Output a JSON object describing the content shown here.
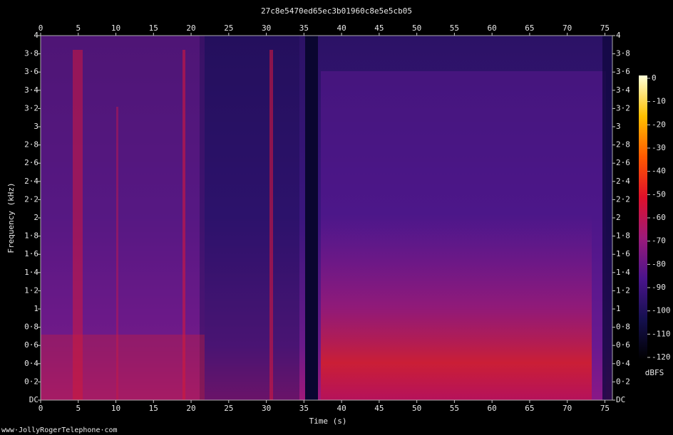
{
  "chart_data": {
    "type": "spectrogram",
    "title": "27c8e5470ed65ec3b01960c8e5e5cb05",
    "x_label": "Time (s)",
    "y_label": "Frequency (kHz)",
    "xlim": [
      0,
      76
    ],
    "xticks": [
      0,
      5,
      10,
      15,
      20,
      25,
      30,
      35,
      40,
      45,
      50,
      55,
      60,
      65,
      70,
      75
    ],
    "ylim": [
      0,
      4
    ],
    "yticks": [
      {
        "value": 0,
        "label": "DC"
      },
      {
        "value": 0.2,
        "label": "0·2"
      },
      {
        "value": 0.4,
        "label": "0·4"
      },
      {
        "value": 0.6,
        "label": "0·6"
      },
      {
        "value": 0.8,
        "label": "0·8"
      },
      {
        "value": 1,
        "label": "1"
      },
      {
        "value": 1.2,
        "label": "1·2"
      },
      {
        "value": 1.4,
        "label": "1·4"
      },
      {
        "value": 1.6,
        "label": "1·6"
      },
      {
        "value": 1.8,
        "label": "1·8"
      },
      {
        "value": 2,
        "label": "2"
      },
      {
        "value": 2.2,
        "label": "2·2"
      },
      {
        "value": 2.4,
        "label": "2·4"
      },
      {
        "value": 2.6,
        "label": "2·6"
      },
      {
        "value": 2.8,
        "label": "2·8"
      },
      {
        "value": 3,
        "label": "3"
      },
      {
        "value": 3.2,
        "label": "3·2"
      },
      {
        "value": 3.4,
        "label": "3·4"
      },
      {
        "value": 3.6,
        "label": "3·6"
      },
      {
        "value": 3.8,
        "label": "3·8"
      },
      {
        "value": 4,
        "label": "4"
      }
    ],
    "colorbar": {
      "label": "dBFS",
      "lim": [
        -120,
        0
      ],
      "ticks": [
        0,
        -10,
        -20,
        -30,
        -40,
        -50,
        -60,
        -70,
        -80,
        -90,
        -100,
        -110,
        -120
      ],
      "colors": [
        "#000000",
        "#15104f",
        "#4a148c",
        "#9c1a7a",
        "#e0102a",
        "#ff5a00",
        "#ffc000",
        "#ffffd8"
      ]
    },
    "footer": "www·JollyRogerTelephone·com"
  }
}
